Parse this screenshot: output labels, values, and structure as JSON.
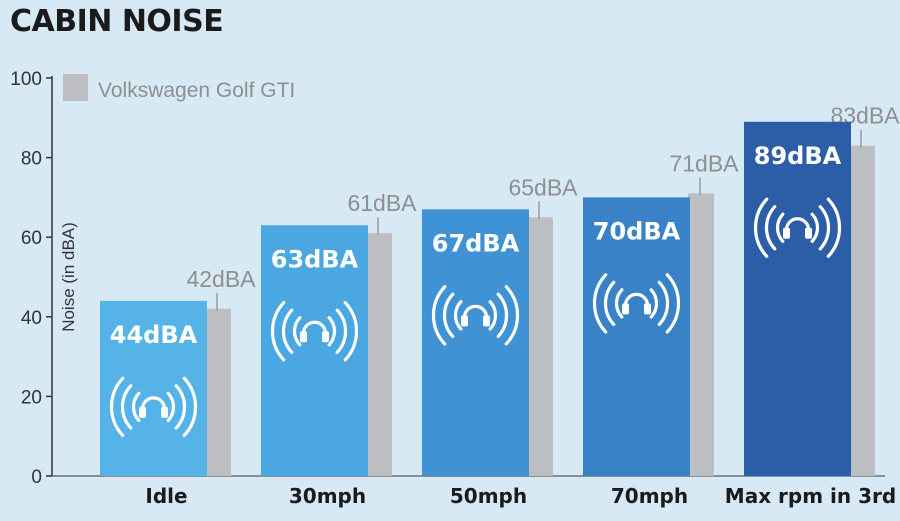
{
  "title": "CABIN NOISE",
  "chart_data": {
    "type": "bar",
    "title": "CABIN NOISE",
    "ylabel": "Noise (in dBA)",
    "xlabel": "",
    "ylim": [
      0,
      100
    ],
    "yticks": [
      0,
      20,
      40,
      60,
      80,
      100
    ],
    "categories": [
      "Idle",
      "30mph",
      "50mph",
      "70mph",
      "Max rpm in 3rd"
    ],
    "series": [
      {
        "values": [
          44,
          63,
          67,
          70,
          89
        ],
        "labels": [
          "44dBA",
          "63dBA",
          "67dBA",
          "70dBA",
          "89dBA"
        ],
        "colors": [
          "#55b3e8",
          "#4aa7e2",
          "#3f93d5",
          "#3a82c8",
          "#2c5ea8"
        ]
      },
      {
        "name": "Volkswagen Golf GTI",
        "values": [
          42,
          61,
          65,
          71,
          83
        ],
        "labels": [
          "42dBA",
          "61dBA",
          "65dBA",
          "71dBA",
          "83dBA"
        ],
        "color": "#bcbec1"
      }
    ],
    "legend_position": "top-left",
    "grid": false,
    "icon": "headphones-sound-icon"
  }
}
